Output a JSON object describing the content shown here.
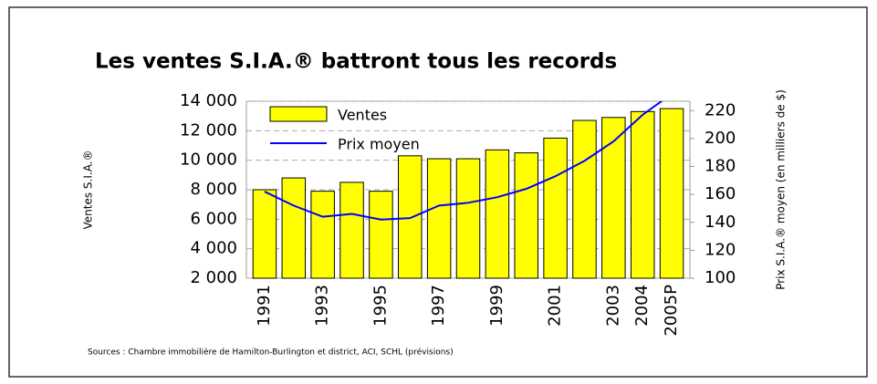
{
  "chart_data": {
    "type": "bar_line",
    "title": "Les ventes S.I.A.® battront tous les records",
    "y_label": "Ventes S.I.A.®",
    "y2_label": "Prix S.I.A.® moyen (en milliers de $)",
    "source": "Sources : Chambre immobilière de Hamilton-Burlington et district, ACI, SCHL (prévisions)",
    "categories": [
      "1991",
      null,
      "1993",
      null,
      "1995",
      null,
      "1997",
      null,
      "1999",
      null,
      "2001",
      null,
      "2003",
      "2004",
      "2005P"
    ],
    "series": [
      {
        "name": "Ventes",
        "color": "#ffff00",
        "values": [
          8000,
          8800,
          7900,
          8500,
          7900,
          10300,
          10100,
          10100,
          10700,
          10500,
          11500,
          12700,
          12900,
          13300,
          13500
        ]
      },
      {
        "name": "Prix moyen",
        "color": "#0000ff",
        "axis": "y2",
        "values": [
          162,
          152,
          144,
          146,
          142,
          143,
          152,
          154,
          158,
          164,
          173,
          184,
          198,
          217,
          232
        ]
      }
    ],
    "ylim": [
      2000,
      14000
    ],
    "yticks": [
      {
        "value": 2000,
        "label": "2 000"
      },
      {
        "value": 4000,
        "label": "4 000"
      },
      {
        "value": 6000,
        "label": "6 000"
      },
      {
        "value": 8000,
        "label": "8 000"
      },
      {
        "value": 10000,
        "label": "10 000"
      },
      {
        "value": 12000,
        "label": "12 000"
      },
      {
        "value": 14000,
        "label": "14 000"
      }
    ],
    "y2lim": [
      100,
      226.7
    ],
    "y2ticks": [
      100,
      120,
      140,
      160,
      180,
      200,
      220
    ],
    "grid": true
  }
}
